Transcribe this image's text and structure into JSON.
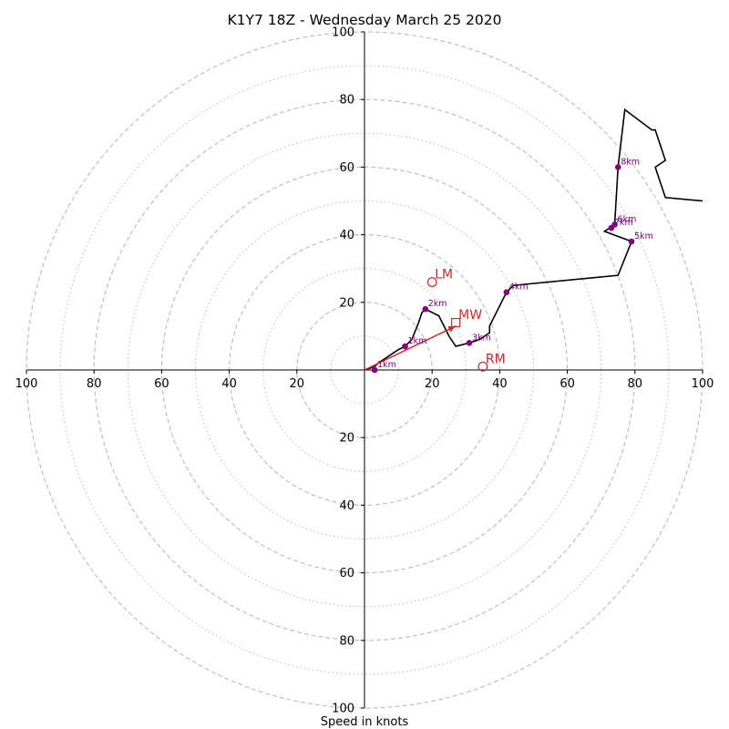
{
  "chart_data": {
    "type": "hodograph",
    "title": "K1Y7 18Z - Wednesday March 25 2020",
    "xlabel": "Speed in knots",
    "xlim": [
      -100,
      100
    ],
    "ylim": [
      -100,
      100
    ],
    "ring_major": [
      20,
      40,
      60,
      80,
      100
    ],
    "ring_minor": [
      10,
      30,
      50,
      70,
      90
    ],
    "tick_values": [
      20,
      40,
      60,
      80,
      100
    ],
    "tick_labels": [
      "20",
      "40",
      "60",
      "80",
      "100"
    ],
    "grid": true,
    "colors": {
      "trace": "#000000",
      "height_marker": "#800080",
      "storm_motion": "#d62728",
      "grid": "#bbbbbb"
    },
    "trace": [
      [
        0,
        0
      ],
      [
        3,
        1
      ],
      [
        4,
        2
      ],
      [
        7,
        4
      ],
      [
        10,
        6
      ],
      [
        12,
        7
      ],
      [
        14,
        9
      ],
      [
        16,
        14
      ],
      [
        17,
        17
      ],
      [
        18,
        18
      ],
      [
        22,
        16
      ],
      [
        25,
        10
      ],
      [
        27,
        7
      ],
      [
        31,
        8
      ],
      [
        34,
        9
      ],
      [
        37,
        11
      ],
      [
        37,
        13
      ],
      [
        42,
        23
      ],
      [
        44,
        25
      ],
      [
        75,
        28
      ],
      [
        79,
        38
      ],
      [
        71,
        41
      ],
      [
        74,
        43
      ],
      [
        75,
        60
      ],
      [
        77,
        77
      ],
      [
        85,
        71
      ],
      [
        86,
        71
      ],
      [
        89,
        62
      ],
      [
        86,
        60
      ],
      [
        89,
        51
      ],
      [
        100,
        50
      ]
    ],
    "height_markers": [
      {
        "label": "1km",
        "u": 3,
        "v": 0
      },
      {
        "label": "1km",
        "u": 12,
        "v": 7
      },
      {
        "label": "2km",
        "u": 18,
        "v": 18
      },
      {
        "label": "3km",
        "u": 31,
        "v": 8
      },
      {
        "label": "4km",
        "u": 42,
        "v": 23
      },
      {
        "label": "5km",
        "u": 79,
        "v": 38
      },
      {
        "label": "6km",
        "u": 74,
        "v": 43
      },
      {
        "label": "7km",
        "u": 73,
        "v": 42
      },
      {
        "label": "8km",
        "u": 75,
        "v": 60
      }
    ],
    "storm_motion": [
      {
        "label": "LM",
        "u": 20,
        "v": 26,
        "marker": "circle"
      },
      {
        "label": "MW",
        "u": 27,
        "v": 14,
        "marker": "square"
      },
      {
        "label": "RM",
        "u": 35,
        "v": 1,
        "marker": "circle"
      }
    ],
    "shear_vector": {
      "from": [
        0,
        0
      ],
      "to": [
        27,
        13
      ]
    }
  }
}
